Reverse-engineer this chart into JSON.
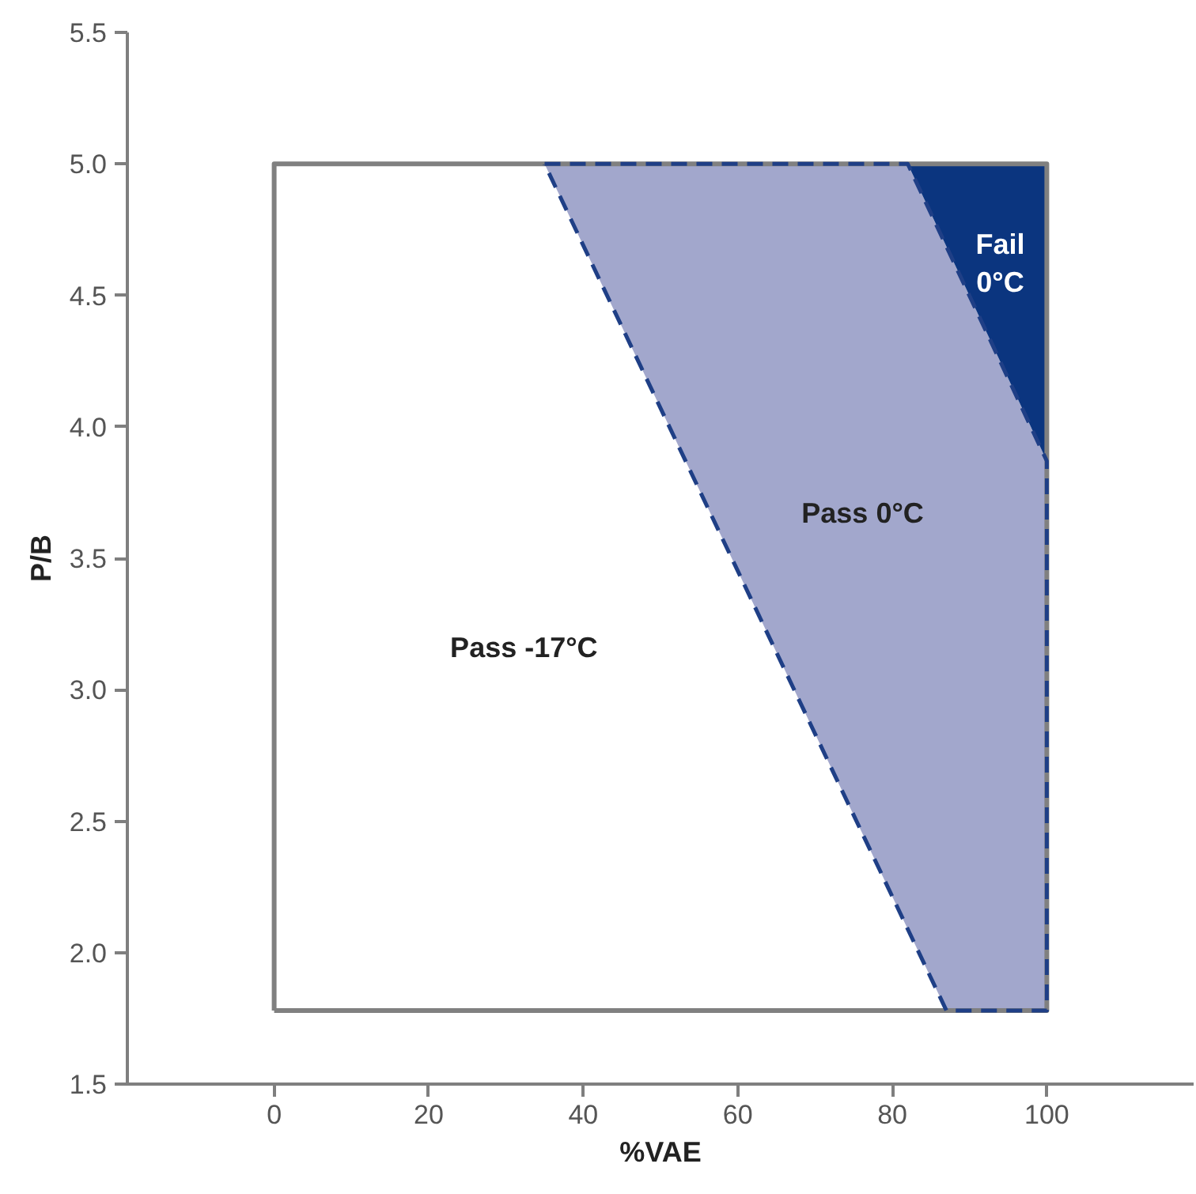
{
  "chart_data": {
    "type": "area",
    "xlabel": "%VAE",
    "ylabel": "P/B",
    "xlim": [
      -19,
      119
    ],
    "ylim": [
      1.5,
      5.5
    ],
    "xticks": [
      0,
      20,
      40,
      60,
      80,
      100
    ],
    "yticks": [
      1.5,
      {
        "value": 2,
        "label": "2.0"
      },
      2.5,
      {
        "value": 3,
        "label": "3.0"
      },
      3.5,
      {
        "value": 4,
        "label": "4.0"
      },
      4.5,
      {
        "value": 5,
        "label": "5.0"
      },
      5.5
    ],
    "grid": false,
    "series": [
      {
        "name": "Pass -17°C",
        "color": "#ffffff",
        "line_style": "solid",
        "x": [
          0,
          100,
          100,
          0,
          0
        ],
        "values": [
          1.78,
          1.78,
          5,
          5,
          1.78
        ]
      },
      {
        "name": "Pass 0°C",
        "color": "#a2a7cc",
        "line_style": "dashed",
        "x": [
          35,
          82,
          100,
          100,
          87,
          35
        ],
        "values": [
          5,
          5,
          3.87,
          1.78,
          1.78,
          5
        ]
      },
      {
        "name": "Fail\n0°C",
        "color": "#0b357f",
        "line_style": "solid",
        "x": [
          82,
          100,
          100,
          82
        ],
        "values": [
          5,
          5,
          3.87,
          5
        ]
      }
    ]
  }
}
